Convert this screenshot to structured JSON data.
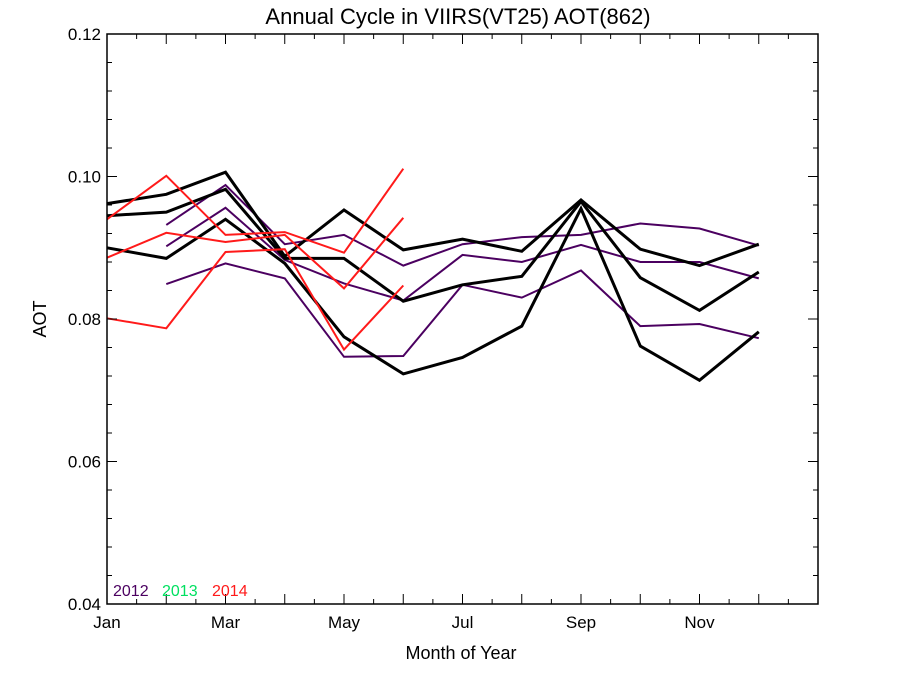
{
  "chart_data": {
    "type": "line",
    "title": "Annual Cycle in VIIRS(VT25) AOT(862)",
    "xlabel": "Month of Year",
    "ylabel": "AOT",
    "xlim": [
      1,
      13
    ],
    "ylim": [
      0.04,
      0.12
    ],
    "xticks": [
      {
        "value": 1,
        "label": "Jan"
      },
      {
        "value": 3,
        "label": "Mar"
      },
      {
        "value": 5,
        "label": "May"
      },
      {
        "value": 7,
        "label": "Jul"
      },
      {
        "value": 9,
        "label": "Sep"
      },
      {
        "value": 11,
        "label": "Nov"
      }
    ],
    "yticks": [
      {
        "value": 0.04,
        "label": "0.04"
      },
      {
        "value": 0.06,
        "label": "0.06"
      },
      {
        "value": 0.08,
        "label": "0.08"
      },
      {
        "value": 0.1,
        "label": "0.10"
      },
      {
        "value": 0.12,
        "label": "0.12"
      }
    ],
    "legend": [
      {
        "label": "2012",
        "color": "#4b0060"
      },
      {
        "label": "2013",
        "color": "#00e060"
      },
      {
        "label": "2014",
        "color": "#ff1a1a"
      }
    ],
    "legend_position": "bottom-left",
    "series": [
      {
        "group": "2012",
        "color": "#4b0060",
        "width": 2,
        "x": [
          2,
          3,
          4,
          5,
          6,
          7,
          8,
          9,
          10,
          11,
          12
        ],
        "y": [
          0.0932,
          0.0988,
          0.0905,
          0.0918,
          0.0875,
          0.0905,
          0.0915,
          0.0918,
          0.0934,
          0.0927,
          0.0903
        ]
      },
      {
        "group": "2012",
        "color": "#4b0060",
        "width": 2,
        "x": [
          2,
          3,
          4,
          5,
          6,
          7,
          8,
          9,
          10,
          11,
          12
        ],
        "y": [
          0.0902,
          0.0956,
          0.0883,
          0.085,
          0.0826,
          0.089,
          0.088,
          0.0904,
          0.088,
          0.088,
          0.0857
        ]
      },
      {
        "group": "2012",
        "color": "#4b0060",
        "width": 2,
        "x": [
          2,
          3,
          4,
          5,
          6,
          7,
          8,
          9,
          10,
          11,
          12
        ],
        "y": [
          0.0849,
          0.0878,
          0.0857,
          0.0747,
          0.0748,
          0.0848,
          0.083,
          0.0868,
          0.079,
          0.0793,
          0.0773
        ]
      },
      {
        "group": "2013",
        "color": "#000000",
        "width": 3,
        "x": [
          1,
          2,
          3,
          4,
          5,
          6,
          7,
          8,
          9,
          10,
          11,
          12
        ],
        "y": [
          0.0962,
          0.0975,
          0.1006,
          0.0888,
          0.0953,
          0.0897,
          0.0912,
          0.0895,
          0.0967,
          0.0898,
          0.0875,
          0.0905
        ]
      },
      {
        "group": "2013",
        "color": "#000000",
        "width": 3,
        "x": [
          1,
          2,
          3,
          4,
          5,
          6,
          7,
          8,
          9,
          10,
          11,
          12
        ],
        "y": [
          0.0945,
          0.095,
          0.0982,
          0.0885,
          0.0885,
          0.0825,
          0.0848,
          0.086,
          0.0965,
          0.0858,
          0.0812,
          0.0866
        ]
      },
      {
        "group": "2013",
        "color": "#000000",
        "width": 3,
        "x": [
          1,
          2,
          3,
          4,
          5,
          6,
          7,
          8,
          9,
          10,
          11,
          12
        ],
        "y": [
          0.09,
          0.0885,
          0.094,
          0.0878,
          0.0775,
          0.0723,
          0.0746,
          0.079,
          0.0955,
          0.0762,
          0.0714,
          0.0782
        ]
      },
      {
        "group": "2014",
        "color": "#ff1a1a",
        "width": 2,
        "x": [
          1,
          2,
          3,
          4,
          5,
          6
        ],
        "y": [
          0.094,
          0.1001,
          0.0918,
          0.0922,
          0.0893,
          0.1011
        ]
      },
      {
        "group": "2014",
        "color": "#ff1a1a",
        "width": 2,
        "x": [
          1,
          2,
          3,
          4,
          5,
          6
        ],
        "y": [
          0.0886,
          0.0921,
          0.0908,
          0.0918,
          0.0843,
          0.0942
        ]
      },
      {
        "group": "2014",
        "color": "#ff1a1a",
        "width": 2,
        "x": [
          1,
          2,
          3,
          4,
          5,
          6
        ],
        "y": [
          0.0801,
          0.0787,
          0.0894,
          0.0898,
          0.0757,
          0.0847
        ]
      }
    ]
  }
}
